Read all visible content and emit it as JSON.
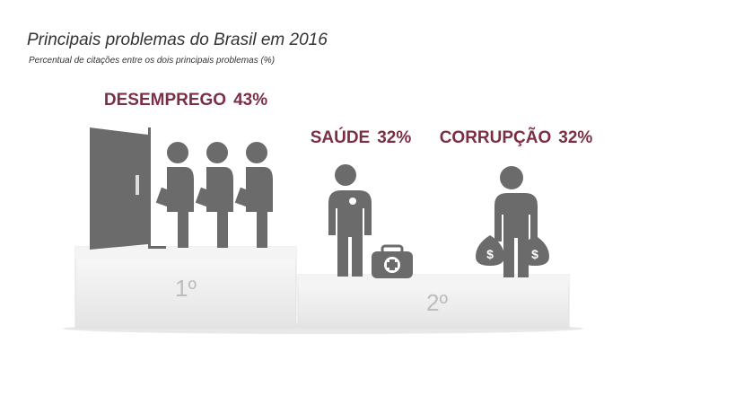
{
  "chart_data": {
    "type": "podium",
    "title": "Principais problemas do Brasil em 2016",
    "subtitle": "Percentual de citações entre os dois principais problemas (%)",
    "categories": [
      "DESEMPREGO",
      "SAÚDE",
      "CORRUPÇÃO"
    ],
    "values": [
      43,
      32,
      32
    ],
    "value_labels": [
      "43%",
      "32%",
      "32%"
    ],
    "ranks": [
      "1º",
      "2º"
    ],
    "color": "#7b2f45"
  }
}
